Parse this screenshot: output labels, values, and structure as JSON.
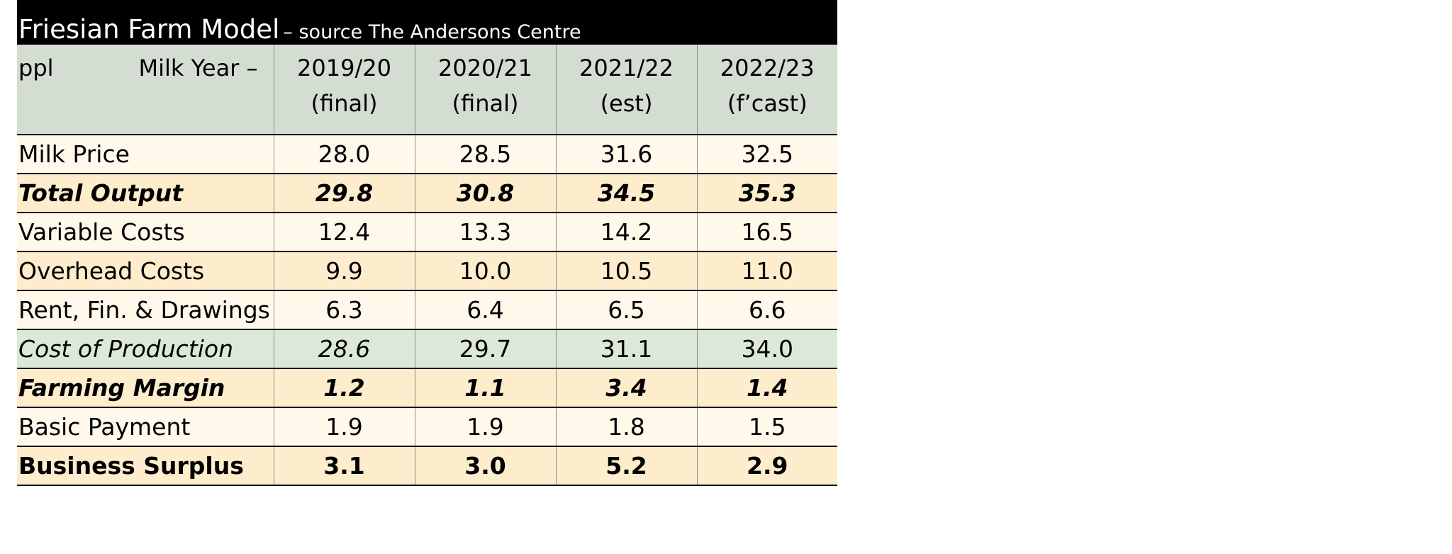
{
  "title": {
    "main": "Friesian Farm Model",
    "source": "– source The Andersons Centre"
  },
  "header": {
    "unit": "ppl",
    "milk_year_label": "Milk Year –",
    "years": [
      {
        "year": "2019/20",
        "status": "(final)"
      },
      {
        "year": "2020/21",
        "status": "(final)"
      },
      {
        "year": "2021/22",
        "status": "(est)"
      },
      {
        "year": "2022/23",
        "status": "(f’cast)"
      }
    ]
  },
  "rows": [
    {
      "label": "Milk Price",
      "values": [
        "28.0",
        "28.5",
        "31.6",
        "32.5"
      ]
    },
    {
      "label": "Total Output",
      "values": [
        "29.8",
        "30.8",
        "34.5",
        "35.3"
      ]
    },
    {
      "label": "Variable Costs",
      "values": [
        "12.4",
        "13.3",
        "14.2",
        "16.5"
      ]
    },
    {
      "label": "Overhead Costs",
      "values": [
        "9.9",
        "10.0",
        "10.5",
        "11.0"
      ]
    },
    {
      "label": "Rent, Fin. & Drawings",
      "values": [
        "6.3",
        "6.4",
        "6.5",
        "6.6"
      ]
    },
    {
      "label": "Cost of Production",
      "values": [
        "28.6",
        "29.7",
        "31.1",
        "34.0"
      ]
    },
    {
      "label": "Farming Margin",
      "values": [
        "1.2",
        "1.1",
        "3.4",
        "1.4"
      ]
    },
    {
      "label": "Basic Payment",
      "values": [
        "1.9",
        "1.9",
        "1.8",
        "1.5"
      ]
    },
    {
      "label": "Business Surplus",
      "values": [
        "3.1",
        "3.0",
        "5.2",
        "2.9"
      ]
    }
  ],
  "colors": {
    "title_background": "#000000",
    "header_background": "#d3ddd1",
    "row_cream": "#fff8eb",
    "row_peach": "#fdedcc",
    "row_green": "#dde9d8"
  }
}
